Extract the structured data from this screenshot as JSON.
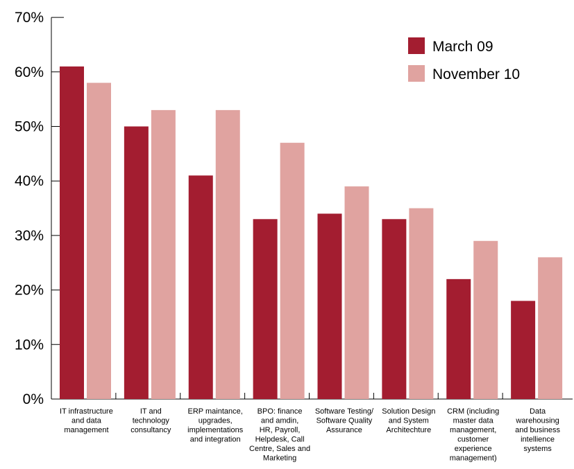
{
  "chart_data": {
    "type": "bar",
    "categories": [
      [
        "IT infrastructure",
        "and data",
        "management"
      ],
      [
        "IT and",
        "technology",
        "consultancy"
      ],
      [
        "ERP maintance,",
        "upgrades,",
        "implementations",
        "and integration"
      ],
      [
        "BPO: finance",
        "and amdin,",
        "HR, Payroll,",
        "Helpdesk, Call",
        "Centre, Sales and",
        "Marketing"
      ],
      [
        "Software Testing/",
        "Software Quality",
        "Assurance"
      ],
      [
        "Solution Design",
        "and System",
        "Architechture"
      ],
      [
        "CRM (including",
        "master data",
        "management,",
        "customer",
        "experience",
        "management)"
      ],
      [
        "Data",
        "warehousing",
        "and business",
        "intellience",
        "systems"
      ]
    ],
    "series": [
      {
        "name": "March 09",
        "color": "#A31D30",
        "values": [
          61,
          50,
          41,
          33,
          34,
          33,
          22,
          18
        ]
      },
      {
        "name": "November 10",
        "color": "#E0A3A0",
        "values": [
          58,
          53,
          53,
          47,
          39,
          35,
          29,
          26
        ]
      }
    ],
    "ylim": [
      0,
      70
    ],
    "yticks": [
      "0%",
      "10%",
      "20%",
      "30%",
      "40%",
      "50%",
      "60%",
      "70%"
    ],
    "grid": false,
    "legend_position": "top-right"
  }
}
